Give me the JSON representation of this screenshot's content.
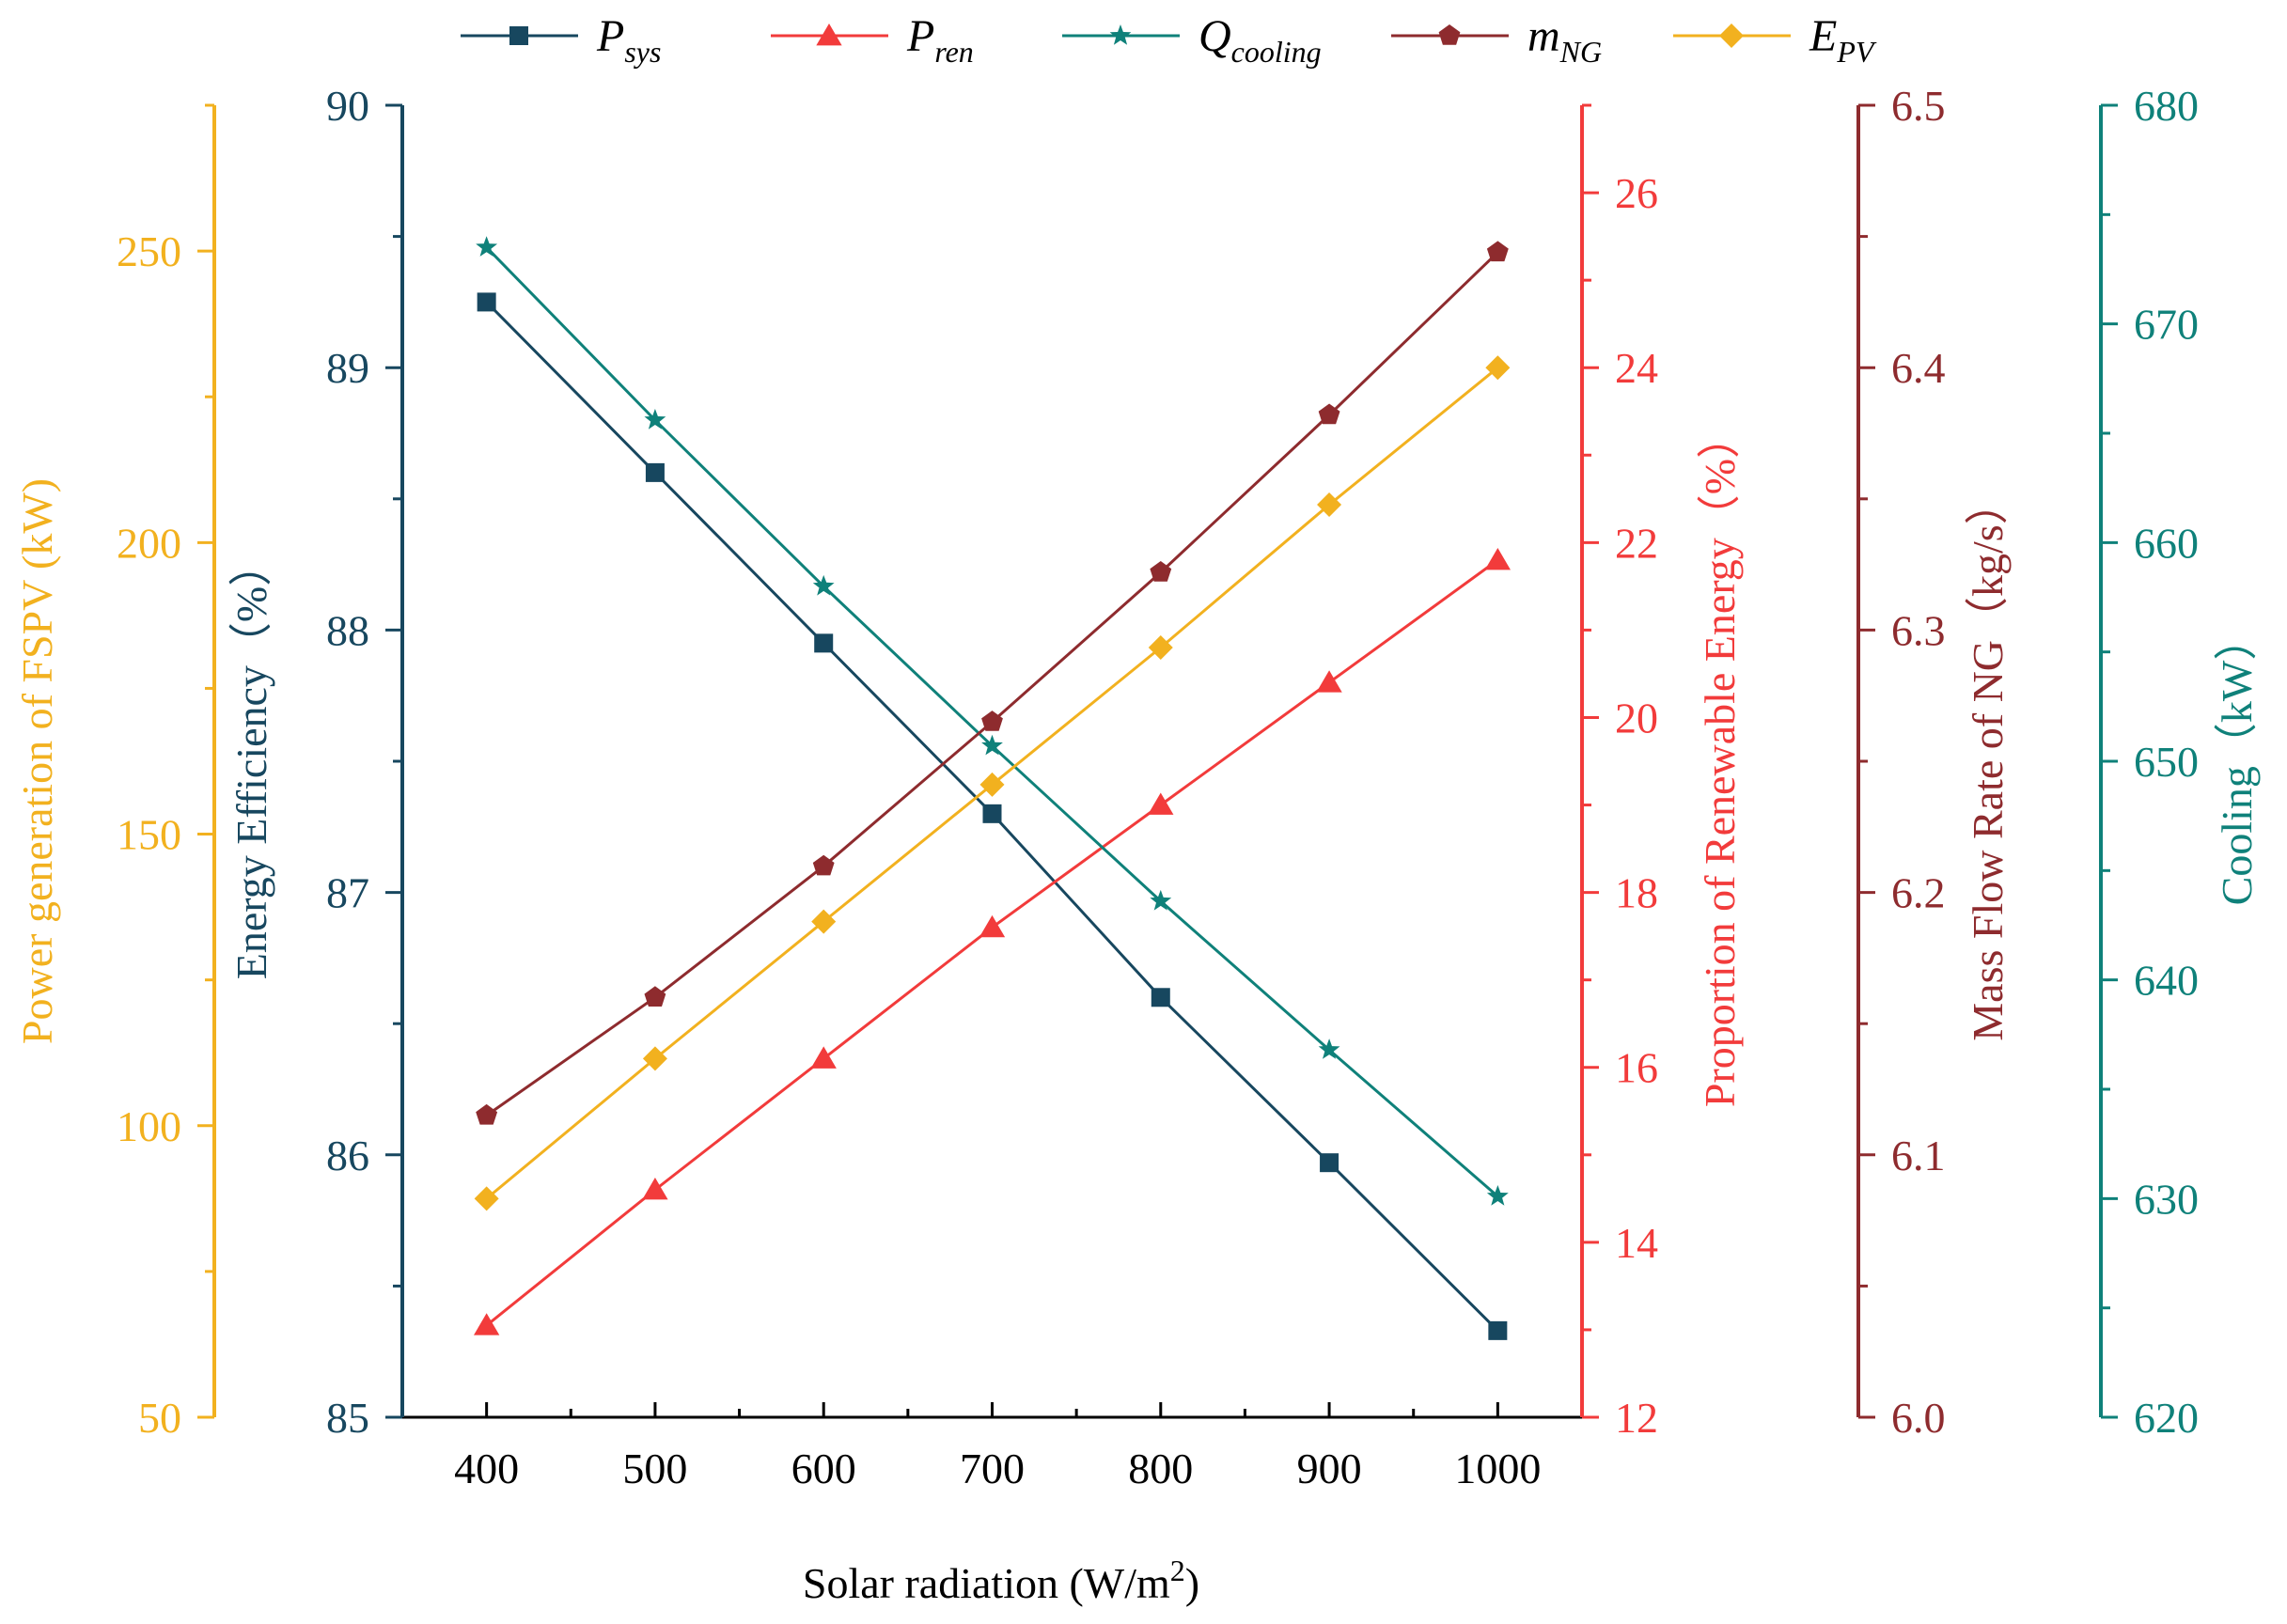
{
  "chart_data": {
    "type": "line",
    "x": [
      400,
      500,
      600,
      700,
      800,
      900,
      1000
    ],
    "xlabel_main": "Solar radiation (W/m",
    "xlabel_sup": "2",
    "xlabel_close": ")",
    "xlim": [
      350,
      1050
    ],
    "x_ticks": [
      "400",
      "500",
      "600",
      "700",
      "800",
      "900",
      "1000"
    ],
    "axes": {
      "pv": {
        "label": "Power generation of FSPV (kW)",
        "color": "#F2B11F",
        "range": [
          50,
          275
        ],
        "ticks": [
          "50",
          "100",
          "150",
          "200",
          "250"
        ]
      },
      "eff": {
        "label": "Energy Efficiency（%）",
        "color": "#17475F",
        "range": [
          85,
          90
        ],
        "ticks": [
          "85",
          "86",
          "87",
          "88",
          "89",
          "90"
        ]
      },
      "ren": {
        "label": "Proportion of Renewable Energy（%）",
        "color": "#F23B3B",
        "range": [
          12,
          27
        ],
        "ticks": [
          "12",
          "14",
          "16",
          "18",
          "20",
          "22",
          "24",
          "26"
        ]
      },
      "ng": {
        "label": "Mass Flow Rate of NG（kg/s）",
        "color": "#8E2B2E",
        "range": [
          6.0,
          6.5
        ],
        "ticks": [
          "6.0",
          "6.1",
          "6.2",
          "6.3",
          "6.4",
          "6.5"
        ]
      },
      "cool": {
        "label": "Cooling（kW）",
        "color": "#0F817A",
        "range": [
          620,
          680
        ],
        "ticks": [
          "620",
          "630",
          "640",
          "650",
          "660",
          "670",
          "680"
        ]
      }
    },
    "series": [
      {
        "key": "P_sys",
        "name_main": "P",
        "name_sub": "sys",
        "axis": "eff",
        "color": "#17475F",
        "marker": "square",
        "values": [
          89.25,
          88.6,
          87.95,
          87.3,
          86.6,
          85.97,
          85.33
        ]
      },
      {
        "key": "P_ren",
        "name_main": "P",
        "name_sub": "ren",
        "axis": "ren",
        "color": "#F23B3B",
        "marker": "triangle",
        "values": [
          13.05,
          14.6,
          16.1,
          17.6,
          19.0,
          20.4,
          21.8
        ]
      },
      {
        "key": "Q_cooling",
        "name_main": "Q",
        "name_sub": "cooling",
        "axis": "cool",
        "color": "#0F817A",
        "marker": "star",
        "values": [
          673.5,
          665.6,
          658.0,
          650.7,
          643.6,
          636.8,
          630.1
        ]
      },
      {
        "key": "m_NG",
        "name_main": "m",
        "name_sub": "NG",
        "axis": "ng",
        "color": "#8E2B2E",
        "marker": "pentagon",
        "values": [
          6.115,
          6.16,
          6.21,
          6.265,
          6.322,
          6.382,
          6.444
        ]
      },
      {
        "key": "E_PV",
        "name_main": "E",
        "name_sub": "PV",
        "axis": "pv",
        "color": "#F2B11F",
        "marker": "diamond",
        "values": [
          87.5,
          111.5,
          135.0,
          158.5,
          182.0,
          206.5,
          230.0
        ]
      }
    ]
  }
}
